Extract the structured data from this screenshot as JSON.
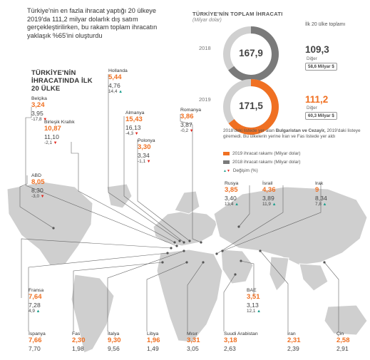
{
  "intro": "Türkiye'nin en fazla ihracat yaptığı 20 ülkeye 2019'da 111,2 milyar dolarlık dış satım gerçekleştirilirken, bu rakam toplam ihracatın yaklaşık %65'ini oluşturdu",
  "left_title": "TÜRKİYE'NİN İHRACATINDA İLK 20 ÜLKE",
  "header": {
    "title": "TÜRKİYE'NİN TOPLAM İHRACATI",
    "subtitle": "(Milyar dolar)",
    "top20_label": "İlk 20 ülke toplamı"
  },
  "totals": [
    {
      "year": "2018",
      "total": "167,9",
      "top20": "109,3",
      "other_label": "Diğer",
      "other_value": "58,6 Milyar $",
      "top20_share": 0.651
    },
    {
      "year": "2019",
      "total": "171,5",
      "top20": "111,2",
      "other_label": "Diğer",
      "other_value": "60,3 Milyar $",
      "top20_share": 0.648
    }
  ],
  "note": {
    "pre": "2018'deki listede yer alan ",
    "bold": "Bulgaristan ve Cezayir,",
    "post": " 2019'daki listeye giremedi. Bu ülkelerin yerine İran ve Fas listede yer aldı"
  },
  "legend": {
    "s2019": "2019 ihracat rakamı (Milyar dolar)",
    "s2018": "2018 ihracat rakamı (Milyar dolar)",
    "change": "Değişim (%)"
  },
  "colors": {
    "orange": "#f07022",
    "gray": "#7a7a7a",
    "light": "#d0d0d0",
    "up": "#1a9e8c",
    "down": "#e2231a"
  },
  "chart_data": {
    "type": "table",
    "title": "TÜRKİYE'NİN İHRACATINDA İLK 20 ÜLKE",
    "columns": [
      "Ülke",
      "2019",
      "2018",
      "Değişim (%)"
    ],
    "rows": [
      {
        "country": "Belçika",
        "v2019": "3,24",
        "v2018": "3,95",
        "change": "-17,8",
        "dir": "down"
      },
      {
        "country": "Birleşik Krallık",
        "v2019": "10,87",
        "v2018": "11,10",
        "change": "-2,1",
        "dir": "down"
      },
      {
        "country": "Hollanda",
        "v2019": "5,44",
        "v2018": "4,76",
        "change": "14,4",
        "dir": "up"
      },
      {
        "country": "Almanya",
        "v2019": "15,43",
        "v2018": "16,13",
        "change": "-4,3",
        "dir": "down"
      },
      {
        "country": "Polonya",
        "v2019": "3,30",
        "v2018": "3,34",
        "change": "-1,1",
        "dir": "down"
      },
      {
        "country": "Romanya",
        "v2019": "3,86",
        "v2018": "3,87",
        "change": "-0,2",
        "dir": "down"
      },
      {
        "country": "ABD",
        "v2019": "8,05",
        "v2018": "8,30",
        "change": "-3,0",
        "dir": "down"
      },
      {
        "country": "Rusya",
        "v2019": "3,85",
        "v2018": "3,40",
        "change": "13,4",
        "dir": "up"
      },
      {
        "country": "İsrail",
        "v2019": "4,36",
        "v2018": "3,89",
        "change": "11,9",
        "dir": "up"
      },
      {
        "country": "Irak",
        "v2019": "9",
        "v2018": "8,34",
        "change": "7,8",
        "dir": "up"
      },
      {
        "country": "Fransa",
        "v2019": "7,64",
        "v2018": "7,28",
        "change": "4,9",
        "dir": "up"
      },
      {
        "country": "BAE",
        "v2019": "3,51",
        "v2018": "3,13",
        "change": "12,1",
        "dir": "up"
      },
      {
        "country": "İspanya",
        "v2019": "7,66",
        "v2018": "7,70",
        "change": "",
        "dir": ""
      },
      {
        "country": "Fas",
        "v2019": "2,30",
        "v2018": "1,98",
        "change": "",
        "dir": ""
      },
      {
        "country": "İtalya",
        "v2019": "9,30",
        "v2018": "9,56",
        "change": "",
        "dir": ""
      },
      {
        "country": "Libya",
        "v2019": "1,96",
        "v2018": "1,49",
        "change": "",
        "dir": ""
      },
      {
        "country": "Mısır",
        "v2019": "3,31",
        "v2018": "3,05",
        "change": "",
        "dir": ""
      },
      {
        "country": "Suudi Arabistan",
        "v2019": "3,18",
        "v2018": "2,63",
        "change": "",
        "dir": ""
      },
      {
        "country": "İran",
        "v2019": "2,31",
        "v2018": "2,39",
        "change": "",
        "dir": ""
      },
      {
        "country": "Çin",
        "v2019": "2,58",
        "v2018": "2,91",
        "change": "",
        "dir": ""
      }
    ]
  }
}
